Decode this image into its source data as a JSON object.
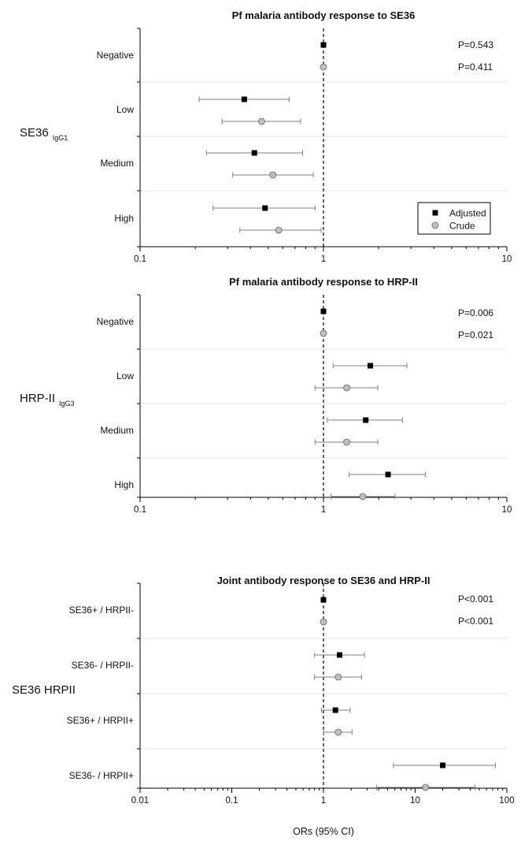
{
  "chart_data": [
    {
      "type": "scatter",
      "subtype": "forest-plot",
      "title": "Pf malaria antibody response to SE36",
      "group_label": "SE36",
      "group_sub": "IgG1",
      "x_scale": "log",
      "xlim": [
        0.1,
        10
      ],
      "x_ticks": [
        "0.1",
        "1",
        "10"
      ],
      "reference_line": 1,
      "categories": [
        "Negative",
        "Low",
        "Medium",
        "High"
      ],
      "p_values": [
        "P=0.543",
        "P=0.411"
      ],
      "legend": [
        "Adjusted",
        "Crude"
      ],
      "legend_position": "bottom-right",
      "series": [
        {
          "name": "Adjusted",
          "marker": "square",
          "color": "#000000",
          "estimate": [
            1.0,
            0.37,
            0.42,
            0.48
          ],
          "lower": [
            null,
            0.21,
            0.23,
            0.25
          ],
          "upper": [
            null,
            0.65,
            0.77,
            0.9
          ]
        },
        {
          "name": "Crude",
          "marker": "circle",
          "color": "#bfbfbf",
          "estimate": [
            1.0,
            0.46,
            0.53,
            0.57
          ],
          "lower": [
            null,
            0.28,
            0.32,
            0.35
          ],
          "upper": [
            null,
            0.75,
            0.88,
            0.97
          ]
        }
      ]
    },
    {
      "type": "scatter",
      "subtype": "forest-plot",
      "title": "Pf malaria antibody response to HRP-II",
      "group_label": "HRP-II",
      "group_sub": "IgG3",
      "x_scale": "log",
      "xlim": [
        0.1,
        10
      ],
      "x_ticks": [
        "0.1",
        "1",
        "10"
      ],
      "reference_line": 1,
      "categories": [
        "Negative",
        "Low",
        "Medium",
        "High"
      ],
      "p_values": [
        "P=0.006",
        "P=0.021"
      ],
      "series": [
        {
          "name": "Adjusted",
          "marker": "square",
          "color": "#000000",
          "estimate": [
            1.0,
            1.8,
            1.7,
            2.25
          ],
          "lower": [
            null,
            1.13,
            1.05,
            1.38
          ],
          "upper": [
            null,
            2.85,
            2.7,
            3.6
          ]
        },
        {
          "name": "Crude",
          "marker": "circle",
          "color": "#bfbfbf",
          "estimate": [
            1.0,
            1.34,
            1.34,
            1.64
          ],
          "lower": [
            null,
            0.9,
            0.9,
            1.1
          ],
          "upper": [
            null,
            1.98,
            1.98,
            2.45
          ]
        }
      ]
    },
    {
      "type": "scatter",
      "subtype": "forest-plot",
      "title": "Joint antibody response to SE36 and HRP-II",
      "group_label": "SE36 HRPII",
      "group_sub": "",
      "x_scale": "log",
      "xlim": [
        0.01,
        100
      ],
      "x_ticks": [
        "0.01",
        "0.1",
        "1",
        "10",
        "100"
      ],
      "xlabel": "ORs (95% CI)",
      "reference_line": 1,
      "categories": [
        "SE36+ / HRPII-",
        "SE36- / HRPII-",
        "SE36+ / HRPII+",
        "SE36- / HRPII+"
      ],
      "p_values": [
        "P<0.001",
        "P<0.001"
      ],
      "series": [
        {
          "name": "Adjusted",
          "marker": "square",
          "color": "#000000",
          "estimate": [
            1.0,
            1.5,
            1.35,
            20
          ],
          "lower": [
            null,
            0.8,
            0.95,
            5.8
          ],
          "upper": [
            null,
            2.8,
            1.95,
            75
          ]
        },
        {
          "name": "Crude",
          "marker": "circle",
          "color": "#bfbfbf",
          "estimate": [
            1.0,
            1.45,
            1.45,
            13
          ],
          "lower": [
            null,
            0.8,
            1.0,
            3.8
          ],
          "upper": [
            null,
            2.6,
            2.05,
            45
          ]
        }
      ]
    }
  ]
}
